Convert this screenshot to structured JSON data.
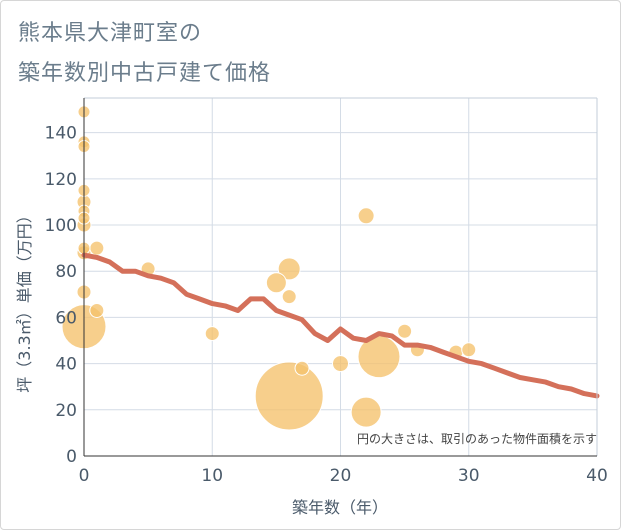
{
  "title_lines": [
    "熊本県大津町室の",
    "築年数別中古戸建て価格"
  ],
  "chart_data": {
    "type": "scatter",
    "xlabel": "築年数（年）",
    "ylabel": "坪（3.3㎡）単価（万円）",
    "xlim": [
      0,
      40
    ],
    "ylim": [
      0,
      155
    ],
    "xticks": [
      "0",
      "10",
      "20",
      "30",
      "40"
    ],
    "yticks": [
      "0",
      "20",
      "40",
      "60",
      "80",
      "100",
      "120",
      "140"
    ],
    "note": "円の大きさは、取引のあった物件面積を示す",
    "grid": true,
    "colors": {
      "bubble": "#f5c26b",
      "line": "#d4705a",
      "grid": "#d4dce6",
      "frame": "#c3cdd8"
    },
    "bubbles": [
      {
        "x": 0,
        "y": 149,
        "size": 6
      },
      {
        "x": 0,
        "y": 136,
        "size": 6
      },
      {
        "x": 0,
        "y": 134,
        "size": 6
      },
      {
        "x": 0,
        "y": 115,
        "size": 6
      },
      {
        "x": 0,
        "y": 110,
        "size": 7
      },
      {
        "x": 0,
        "y": 106,
        "size": 6
      },
      {
        "x": 0,
        "y": 103,
        "size": 6
      },
      {
        "x": 0,
        "y": 100,
        "size": 7
      },
      {
        "x": 0,
        "y": 90,
        "size": 6
      },
      {
        "x": 0,
        "y": 88,
        "size": 7
      },
      {
        "x": 0,
        "y": 71,
        "size": 7
      },
      {
        "x": 0,
        "y": 56,
        "size": 22
      },
      {
        "x": 1,
        "y": 90,
        "size": 7
      },
      {
        "x": 1,
        "y": 63,
        "size": 7
      },
      {
        "x": 5,
        "y": 81,
        "size": 7
      },
      {
        "x": 10,
        "y": 53,
        "size": 7
      },
      {
        "x": 15,
        "y": 75,
        "size": 10
      },
      {
        "x": 16,
        "y": 81,
        "size": 11
      },
      {
        "x": 16,
        "y": 69,
        "size": 7
      },
      {
        "x": 16,
        "y": 26,
        "size": 34
      },
      {
        "x": 17,
        "y": 38,
        "size": 7
      },
      {
        "x": 20,
        "y": 40,
        "size": 8
      },
      {
        "x": 22,
        "y": 104,
        "size": 8
      },
      {
        "x": 22,
        "y": 19,
        "size": 15
      },
      {
        "x": 23,
        "y": 43,
        "size": 21
      },
      {
        "x": 25,
        "y": 54,
        "size": 7
      },
      {
        "x": 26,
        "y": 46,
        "size": 7
      },
      {
        "x": 29,
        "y": 45,
        "size": 7
      },
      {
        "x": 30,
        "y": 46,
        "size": 7
      }
    ],
    "trend": {
      "x": [
        0,
        1,
        2,
        3,
        4,
        5,
        6,
        7,
        8,
        9,
        10,
        11,
        12,
        13,
        14,
        15,
        16,
        17,
        18,
        19,
        20,
        21,
        22,
        23,
        24,
        25,
        26,
        27,
        28,
        29,
        30,
        31,
        32,
        33,
        34,
        35,
        36,
        37,
        38,
        39,
        40
      ],
      "y": [
        87,
        86,
        84,
        80,
        80,
        78,
        77,
        75,
        70,
        68,
        66,
        65,
        63,
        68,
        68,
        63,
        61,
        59,
        53,
        50,
        55,
        51,
        50,
        53,
        52,
        48,
        48,
        47,
        45,
        43,
        41,
        40,
        38,
        36,
        34,
        33,
        32,
        30,
        29,
        27,
        26
      ]
    }
  }
}
